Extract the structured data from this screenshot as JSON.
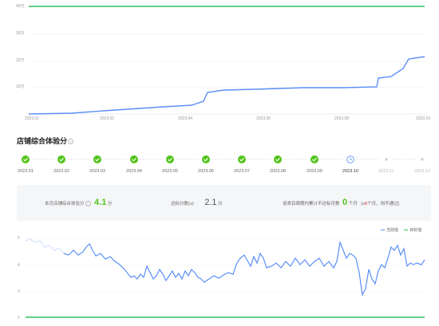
{
  "top_chart": {
    "type": "line",
    "y_ticks": [
      "40万",
      "30万",
      "20万",
      "10万"
    ],
    "x_ticks": [
      "2023.01",
      "2023.02",
      "2023.04",
      "2023.06",
      "2023.08",
      "2023.10"
    ],
    "series_color": "#5b8ff9",
    "target_color": "#2fc25b"
  },
  "section": {
    "title": "店铺综合体验分",
    "help_icon": "question-circle-icon"
  },
  "timeline": {
    "months": [
      {
        "label": "2023.01",
        "status": "done"
      },
      {
        "label": "2023.02",
        "status": "done"
      },
      {
        "label": "2023.03",
        "status": "done"
      },
      {
        "label": "2023.04",
        "status": "done"
      },
      {
        "label": "2023.05",
        "status": "done"
      },
      {
        "label": "2023.06",
        "status": "done"
      },
      {
        "label": "2023.07",
        "status": "done"
      },
      {
        "label": "2023.08",
        "status": "done"
      },
      {
        "label": "2023.09",
        "status": "done"
      },
      {
        "label": "2023.10",
        "status": "current"
      },
      {
        "label": "2023.11",
        "status": "future"
      },
      {
        "label": "2023.12",
        "status": "future"
      }
    ],
    "done_color": "#52c41a",
    "current_color": "#5b8ff9"
  },
  "info": {
    "score_label": "本月店铺综合体验分",
    "score_value": "4.1",
    "score_unit": "分",
    "pass_label": "达标分数(≥)",
    "pass_value": "2.1",
    "pass_unit": "分",
    "fail_label": "该类目周期内累计不达标月数",
    "fail_value": "0",
    "fail_unit": "个月",
    "fail_note_prefix": "(≥",
    "fail_note_num": "6",
    "fail_note_suffix": "个月，则不通过)",
    "accent_green": "#52c41a",
    "warn_red": "#f5222d"
  },
  "bottom_chart": {
    "type": "line",
    "y_ticks": [
      "5",
      "4",
      "3",
      "2"
    ],
    "legend": [
      {
        "name": "当前值",
        "color": "#5b8ff9"
      },
      {
        "name": "目标值",
        "color": "#2fc25b"
      }
    ],
    "series_color": "#5b8ff9",
    "target_color": "#2fc25b"
  }
}
